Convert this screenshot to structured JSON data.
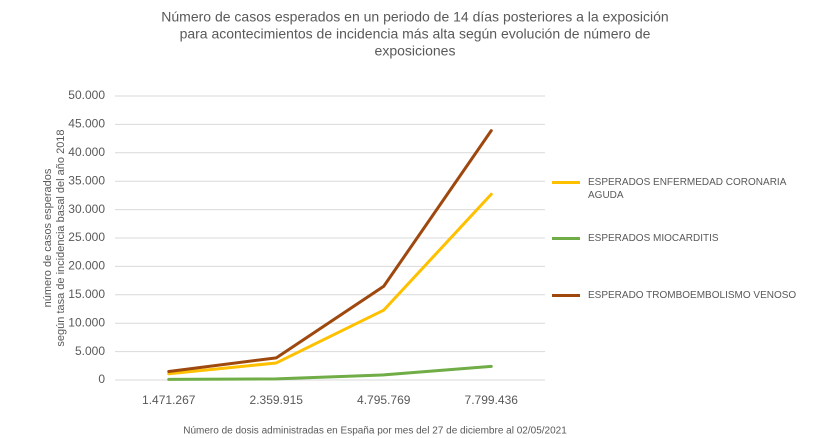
{
  "chart_data": {
    "type": "line",
    "title": [
      "Número de casos esperados en un periodo de 14 días posteriores a la exposición",
      "para acontecimientos de incidencia más alta según evolución de número de",
      "exposiciones"
    ],
    "y_label": [
      "número de casos esperados",
      "según tasa de incidencia basal del año 2018"
    ],
    "x_label": "Número de dosis administradas en España por mes del 27 de diciembre al 02/05/2021",
    "categories": [
      "1.471.267",
      "2.359.915",
      "4.795.769",
      "7.799.436"
    ],
    "series": [
      {
        "name": "ESPERADOS ENFERMEDAD CORONARIA AGUDA",
        "color": "#FFC000",
        "values": [
          1100,
          3000,
          12300,
          32700
        ]
      },
      {
        "name": "ESPERADOS MIOCARDITIS",
        "color": "#70AD47",
        "values": [
          100,
          200,
          900,
          2400
        ]
      },
      {
        "name": "ESPERADO TROMBOEMBOLISMO VENOSO",
        "color": "#9E480E",
        "values": [
          1500,
          3900,
          16500,
          43900
        ]
      }
    ],
    "ylim": [
      0,
      50000
    ],
    "yticks": [
      0,
      {
        "value": 5000,
        "label": "5.000"
      },
      {
        "value": 10000,
        "label": "10.000"
      },
      {
        "value": 15000,
        "label": "15.000"
      },
      {
        "value": 20000,
        "label": "20.000"
      },
      {
        "value": 25000,
        "label": "25.000"
      },
      {
        "value": 30000,
        "label": "30.000"
      },
      {
        "value": 35000,
        "label": "35.000"
      },
      {
        "value": 40000,
        "label": "40.000"
      },
      {
        "value": 45000,
        "label": "45.000"
      },
      {
        "value": 50000,
        "label": "50.000"
      }
    ],
    "grid": true,
    "legend": "right"
  }
}
